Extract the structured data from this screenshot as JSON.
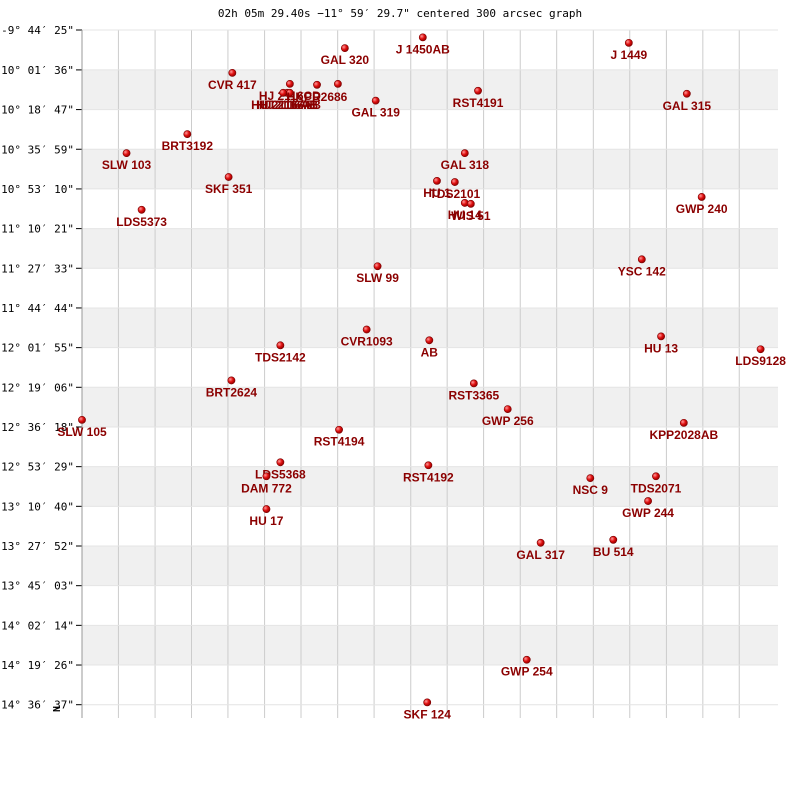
{
  "chart_data": {
    "type": "scatter",
    "title": "02h 05m 29.40s −11° 59′ 29.7\" centered 300 arcsec graph",
    "north_label": "N",
    "colors": {
      "marker": "#cc0000",
      "label": "#8b0000",
      "band": "#f0f0f0",
      "grid": "#cccccc"
    },
    "x_range_arcsec": [
      150,
      -150
    ],
    "y_range_arcsec": [
      150,
      -150
    ],
    "y_ticks": [
      {
        "offset": 150.0,
        "label": "-9° 44′ 25\""
      },
      {
        "offset": 132.6,
        "label": "-10° 01′ 36\""
      },
      {
        "offset": 115.3,
        "label": "-10° 18′ 47\""
      },
      {
        "offset": 98.0,
        "label": "-10° 35′ 59\""
      },
      {
        "offset": 80.7,
        "label": "-10° 53′ 10\""
      },
      {
        "offset": 63.4,
        "label": "-11° 10′ 21\""
      },
      {
        "offset": 46.1,
        "label": "-11° 27′ 33\""
      },
      {
        "offset": 28.8,
        "label": "-11° 44′ 44\""
      },
      {
        "offset": 11.5,
        "label": "-12° 01′ 55\""
      },
      {
        "offset": -5.8,
        "label": "-12° 19′ 06\""
      },
      {
        "offset": -23.1,
        "label": "-12° 36′ 18\""
      },
      {
        "offset": -40.4,
        "label": "-12° 53′ 29\""
      },
      {
        "offset": -57.7,
        "label": "-13° 10′ 40\""
      },
      {
        "offset": -75.0,
        "label": "-13° 27′ 52\""
      },
      {
        "offset": -92.3,
        "label": "-13° 45′ 03\""
      },
      {
        "offset": -109.6,
        "label": "-14° 02′ 14\""
      },
      {
        "offset": -126.9,
        "label": "-14° 19′ 26\""
      },
      {
        "offset": -144.2,
        "label": "-14° 36′ 37\""
      }
    ],
    "x_grid_offsets": [
      134.3,
      118.5,
      102.8,
      87.1,
      71.3,
      55.6,
      39.8,
      24.1,
      8.3,
      -7.4,
      -23.1,
      -38.9,
      -54.6,
      -70.4,
      -86.1,
      -101.9,
      -117.6,
      -133.3
    ],
    "stars": [
      {
        "label": "J 1450AB",
        "x": 3.1,
        "y": 146.8
      },
      {
        "label": "J 1449",
        "x": -85.7,
        "y": 144.4
      },
      {
        "label": "GAL 320",
        "x": 36.7,
        "y": 142.1
      },
      {
        "label": "CVR 417",
        "x": 85.2,
        "y": 131.3
      },
      {
        "label": "HJ 2116CD",
        "x": 60.4,
        "y": 126.5
      },
      {
        "label": "HJ 2116AB",
        "x": 61.6,
        "y": 122.6
      },
      {
        "label": "HJ 2116AB",
        "x": 60.4,
        "y": 122.6
      },
      {
        "label": "HU 2116AB",
        "x": 63.3,
        "y": 122.6
      },
      {
        "label": "HKPR2686",
        "x": 48.7,
        "y": 126.1
      },
      {
        "label": "",
        "x": 39.7,
        "y": 126.5
      },
      {
        "label": "GAL 319",
        "x": 23.4,
        "y": 119.2
      },
      {
        "label": "RST4191",
        "x": -20.7,
        "y": 123.5
      },
      {
        "label": "GAL 315",
        "x": -110.7,
        "y": 122.2
      },
      {
        "label": "BRT3192",
        "x": 104.6,
        "y": 104.6
      },
      {
        "label": "SLW 103",
        "x": 130.8,
        "y": 96.3
      },
      {
        "label": "GAL 318",
        "x": -15.0,
        "y": 96.3
      },
      {
        "label": "SKF 351",
        "x": 86.8,
        "y": 85.9
      },
      {
        "label": "HU 1",
        "x": -3.0,
        "y": 84.2
      },
      {
        "label": "TDS2101",
        "x": -10.7,
        "y": 83.7
      },
      {
        "label": "HU 14",
        "x": -15.0,
        "y": 74.6
      },
      {
        "label": "WIS 51",
        "x": -17.6,
        "y": 74.2
      },
      {
        "label": "GWP 240",
        "x": -117.1,
        "y": 77.2
      },
      {
        "label": "LDS5373",
        "x": 124.3,
        "y": 71.6
      },
      {
        "label": "YSC 142",
        "x": -91.3,
        "y": 50.0
      },
      {
        "label": "SLW 99",
        "x": 22.6,
        "y": 47.0
      },
      {
        "label": "CVR1093",
        "x": 27.3,
        "y": 19.4
      },
      {
        "label": "AB",
        "x": 0.3,
        "y": 14.7
      },
      {
        "label": "HU 13",
        "x": -99.6,
        "y": 16.4
      },
      {
        "label": "TDS2142",
        "x": 64.5,
        "y": 12.5
      },
      {
        "label": "LDS9128",
        "x": -142.5,
        "y": 10.8
      },
      {
        "label": "BRT2624",
        "x": 85.6,
        "y": -2.8
      },
      {
        "label": "RST3365",
        "x": -18.9,
        "y": -4.1
      },
      {
        "label": "GWP 256",
        "x": -33.5,
        "y": -15.3
      },
      {
        "label": "SLW 105",
        "x": 150.0,
        "y": -20.0
      },
      {
        "label": "KPP2028AB",
        "x": -109.4,
        "y": -21.3
      },
      {
        "label": "RST4194",
        "x": 39.2,
        "y": -24.3
      },
      {
        "label": "LDS5368",
        "x": 64.5,
        "y": -38.5
      },
      {
        "label": "RST4192",
        "x": 0.7,
        "y": -39.8
      },
      {
        "label": "DAM 772",
        "x": 70.5,
        "y": -44.6
      },
      {
        "label": "NSC 9",
        "x": -69.1,
        "y": -45.4
      },
      {
        "label": "TDS2071",
        "x": -97.4,
        "y": -44.6
      },
      {
        "label": "GWP 244",
        "x": -94.0,
        "y": -55.4
      },
      {
        "label": "HU 17",
        "x": 70.5,
        "y": -58.9
      },
      {
        "label": "BU 514",
        "x": -79.0,
        "y": -72.3
      },
      {
        "label": "GAL 317",
        "x": -47.7,
        "y": -73.6
      },
      {
        "label": "GWP 254",
        "x": -41.7,
        "y": -124.6
      },
      {
        "label": "SKF 124",
        "x": 1.2,
        "y": -143.2
      }
    ]
  }
}
